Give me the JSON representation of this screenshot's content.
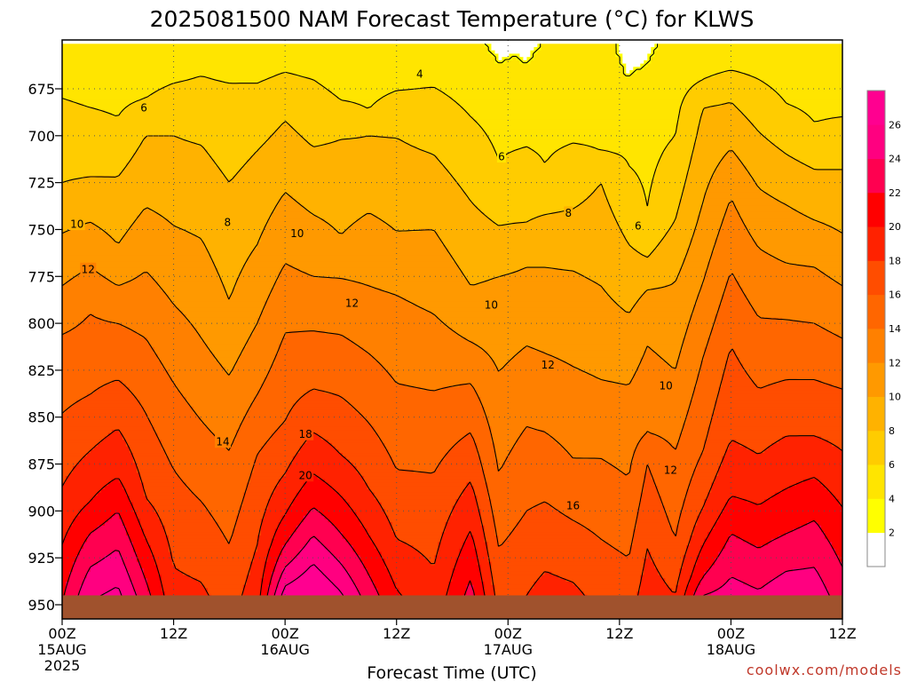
{
  "title": "2025081500 NAM Forecast Temperature (°C) for KLWS",
  "credit": "coolwx.com/models",
  "chart_data": {
    "type": "heatmap",
    "title": "2025081500 NAM Forecast Temperature (°C) for KLWS",
    "xlabel": "Forecast Time (UTC)",
    "ylabel": "",
    "x_range_hours": [
      0,
      84
    ],
    "y_range_mb": [
      950,
      651
    ],
    "y_ticks": [
      675,
      700,
      725,
      750,
      775,
      800,
      825,
      850,
      875,
      900,
      925,
      950
    ],
    "x_ticks": [
      {
        "hour": 0,
        "line1": "00Z",
        "line2": "15AUG",
        "line3": "2025"
      },
      {
        "hour": 12,
        "line1": "12Z",
        "line2": "",
        "line3": ""
      },
      {
        "hour": 24,
        "line1": "00Z",
        "line2": "16AUG",
        "line3": ""
      },
      {
        "hour": 36,
        "line1": "12Z",
        "line2": "",
        "line3": ""
      },
      {
        "hour": 48,
        "line1": "00Z",
        "line2": "17AUG",
        "line3": ""
      },
      {
        "hour": 60,
        "line1": "12Z",
        "line2": "",
        "line3": ""
      },
      {
        "hour": 72,
        "line1": "00Z",
        "line2": "18AUG",
        "line3": ""
      },
      {
        "hour": 84,
        "line1": "12Z",
        "line2": "",
        "line3": ""
      }
    ],
    "grid": true,
    "ground_below_mb": 945,
    "colorbar": {
      "levels": [
        2,
        4,
        6,
        8,
        10,
        12,
        14,
        16,
        18,
        20,
        22,
        24,
        26
      ],
      "colors": [
        "#ffffff",
        "#ffff00",
        "#ffe500",
        "#ffcc00",
        "#ffb200",
        "#ff9900",
        "#ff8000",
        "#ff6600",
        "#ff4d00",
        "#ff2200",
        "#ff0000",
        "#ff0050",
        "#ff0080",
        "#ff0090"
      ]
    },
    "contour_levels": [
      4,
      6,
      8,
      10,
      12,
      14,
      16,
      18,
      20,
      22,
      24,
      26
    ],
    "contour_labels": [
      {
        "text": "4",
        "hour": 38.5,
        "mb": 667
      },
      {
        "text": "6",
        "hour": 8.8,
        "mb": 685
      },
      {
        "text": "6",
        "hour": 47.3,
        "mb": 711
      },
      {
        "text": "6",
        "hour": 62.0,
        "mb": 748
      },
      {
        "text": "8",
        "hour": 17.8,
        "mb": 746
      },
      {
        "text": "8",
        "hour": 54.5,
        "mb": 741
      },
      {
        "text": "10",
        "hour": 1.6,
        "mb": 747
      },
      {
        "text": "10",
        "hour": 25.3,
        "mb": 752
      },
      {
        "text": "10",
        "hour": 46.2,
        "mb": 790
      },
      {
        "text": "10",
        "hour": 65.0,
        "mb": 833
      },
      {
        "text": "12",
        "hour": 2.8,
        "mb": 771
      },
      {
        "text": "12",
        "hour": 31.2,
        "mb": 789
      },
      {
        "text": "12",
        "hour": 52.3,
        "mb": 822
      },
      {
        "text": "12",
        "hour": 65.5,
        "mb": 878
      },
      {
        "text": "14",
        "hour": 17.3,
        "mb": 863
      },
      {
        "text": "16",
        "hour": 55.0,
        "mb": 897
      },
      {
        "text": "18",
        "hour": 26.2,
        "mb": 859
      },
      {
        "text": "20",
        "hour": 26.2,
        "mb": 881
      }
    ],
    "temperature_profiles": [
      {
        "hour": 0,
        "mb": [
          651,
          680,
          725,
          752,
          780,
          806,
          848,
          887,
          918
        ],
        "temps": [
          4.5,
          6,
          8,
          10,
          12,
          14,
          16,
          18,
          20
        ]
      },
      {
        "hour": 3,
        "mb": [
          651,
          685,
          722,
          746,
          770,
          795,
          838,
          868,
          895,
          912,
          930
        ],
        "temps": [
          4.5,
          6,
          8,
          10,
          12,
          14,
          16,
          18,
          20,
          22,
          24
        ]
      },
      {
        "hour": 6,
        "mb": [
          651,
          690,
          722,
          758,
          780,
          800,
          830,
          856,
          882,
          900,
          920
        ],
        "temps": [
          4.5,
          6,
          8,
          10,
          12,
          14,
          16,
          18,
          20,
          22,
          24
        ]
      },
      {
        "hour": 9,
        "mb": [
          651,
          680,
          700,
          738,
          772,
          808,
          848,
          893,
          915
        ],
        "temps": [
          4.5,
          6,
          8,
          10,
          12,
          14,
          16,
          18,
          20
        ]
      },
      {
        "hour": 12,
        "mb": [
          651,
          672,
          700,
          748,
          790,
          832,
          878,
          930
        ],
        "temps": [
          4.5,
          6,
          8,
          10,
          12,
          14,
          16,
          18
        ]
      },
      {
        "hour": 15,
        "mb": [
          651,
          668,
          705,
          755,
          808,
          852,
          895
        ],
        "temps": [
          4.5,
          6,
          8,
          10,
          12,
          14,
          16
        ]
      },
      {
        "hour": 18,
        "mb": [
          651,
          672,
          725,
          788,
          828,
          868,
          918
        ],
        "temps": [
          4.5,
          6,
          8,
          10,
          12,
          14,
          16
        ]
      },
      {
        "hour": 21,
        "mb": [
          651,
          672,
          708,
          758,
          800,
          838,
          870,
          918
        ],
        "temps": [
          4.5,
          6,
          8,
          10,
          12,
          14,
          16,
          18
        ]
      },
      {
        "hour": 24,
        "mb": [
          651,
          666,
          692,
          730,
          768,
          805,
          852,
          880,
          902,
          918,
          930,
          940
        ],
        "temps": [
          4.5,
          6,
          8,
          10,
          12,
          14,
          16,
          18,
          20,
          22,
          24,
          26
        ]
      },
      {
        "hour": 27,
        "mb": [
          651,
          670,
          706,
          742,
          775,
          804,
          835,
          858,
          880,
          898,
          913,
          928
        ],
        "temps": [
          4.5,
          6,
          8,
          10,
          12,
          14,
          16,
          18,
          20,
          22,
          24,
          26
        ]
      },
      {
        "hour": 30,
        "mb": [
          651,
          681,
          702,
          753,
          776,
          806,
          839,
          870,
          892,
          912,
          928,
          943
        ],
        "temps": [
          4.5,
          6,
          8,
          10,
          12,
          14,
          16,
          18,
          20,
          22,
          24,
          26
        ]
      },
      {
        "hour": 33,
        "mb": [
          651,
          686,
          700,
          741,
          780,
          816,
          853,
          888,
          913,
          934
        ],
        "temps": [
          4.5,
          6,
          8,
          10,
          12,
          14,
          16,
          18,
          20,
          22
        ]
      },
      {
        "hour": 36,
        "mb": [
          651,
          676,
          701,
          751,
          785,
          832,
          878,
          915,
          942
        ],
        "temps": [
          4.5,
          6,
          8,
          10,
          12,
          14,
          16,
          18,
          20
        ]
      },
      {
        "hour": 40,
        "mb": [
          651,
          674,
          710,
          750,
          795,
          836,
          880,
          930
        ],
        "temps": [
          4.5,
          6,
          8,
          10,
          12,
          14,
          16,
          18
        ]
      },
      {
        "hour": 44,
        "mb": [
          651,
          690,
          735,
          780,
          810,
          832,
          858
        ],
        "temps": [
          4.5,
          6,
          8,
          10,
          12,
          14,
          16
        ]
      },
      {
        "hour": 47,
        "mb": [
          651,
          713,
          748,
          775,
          826,
          880,
          920
        ],
        "temps": [
          4.5,
          6,
          8,
          10,
          12,
          14,
          16
        ]
      },
      {
        "hour": 50,
        "mb": [
          651,
          706,
          746,
          770,
          812,
          855,
          900
        ],
        "temps": [
          4.5,
          6,
          8,
          10,
          12,
          14,
          16
        ]
      },
      {
        "hour": 52,
        "mb": [
          651,
          715,
          742,
          770,
          816,
          858,
          895
        ],
        "temps": [
          4.5,
          6,
          8,
          10,
          12,
          14,
          16
        ]
      },
      {
        "hour": 55,
        "mb": [
          651,
          704,
          739,
          772,
          823,
          872,
          905
        ],
        "temps": [
          4.5,
          6,
          8,
          10,
          12,
          14,
          16
        ]
      },
      {
        "hour": 58,
        "mb": [
          651,
          708,
          725,
          780,
          830,
          872,
          915
        ],
        "temps": [
          4.5,
          6,
          8,
          10,
          12,
          14,
          16
        ]
      },
      {
        "hour": 61,
        "mb": [
          651,
          716,
          758,
          795,
          833,
          882,
          925
        ],
        "temps": [
          4.5,
          6,
          8,
          10,
          12,
          14,
          16
        ]
      },
      {
        "hour": 63,
        "mb": [
          651,
          738,
          765,
          782,
          812,
          858,
          875,
          920
        ],
        "temps": [
          4.5,
          6,
          8,
          10,
          12,
          14,
          16,
          18
        ]
      },
      {
        "hour": 66,
        "mb": [
          651,
          700,
          745,
          778,
          825,
          868,
          915,
          945
        ],
        "temps": [
          4.5,
          6,
          8,
          10,
          12,
          14,
          16,
          18
        ]
      },
      {
        "hour": 69,
        "mb": [
          651,
          670,
          685,
          735,
          778,
          818,
          868,
          898,
          918,
          935,
          945
        ],
        "temps": [
          4.5,
          6,
          8,
          10,
          12,
          14,
          16,
          18,
          20,
          22,
          24
        ]
      },
      {
        "hour": 72,
        "mb": [
          651,
          665,
          682,
          707,
          733,
          772,
          812,
          862,
          892,
          912,
          935
        ],
        "temps": [
          4.5,
          6,
          8,
          10,
          12,
          14,
          16,
          18,
          20,
          22,
          24
        ]
      },
      {
        "hour": 75,
        "mb": [
          651,
          670,
          698,
          728,
          760,
          797,
          835,
          870,
          897,
          920,
          942
        ],
        "temps": [
          4.5,
          6,
          8,
          10,
          12,
          14,
          16,
          18,
          20,
          22,
          24
        ]
      },
      {
        "hour": 78,
        "mb": [
          651,
          683,
          710,
          737,
          768,
          798,
          830,
          860,
          888,
          912,
          932
        ],
        "temps": [
          4.5,
          6,
          8,
          10,
          12,
          14,
          16,
          18,
          20,
          22,
          24
        ]
      },
      {
        "hour": 81,
        "mb": [
          651,
          693,
          718,
          745,
          770,
          800,
          830,
          860,
          882,
          905,
          930
        ],
        "temps": [
          4.5,
          6,
          8,
          10,
          12,
          14,
          16,
          18,
          20,
          22,
          24
        ]
      },
      {
        "hour": 84,
        "mb": [
          651,
          690,
          718,
          752,
          780,
          808,
          835,
          868,
          898,
          930
        ],
        "temps": [
          4.5,
          6,
          8,
          10,
          12,
          14,
          16,
          18,
          20,
          22
        ]
      }
    ],
    "cold_pockets": [
      {
        "hour": [
          45.6,
          51.5
        ],
        "mb_bottom": [
          651,
          661,
          657,
          661,
          651
        ]
      },
      {
        "hour": [
          59.6,
          64.0
        ],
        "mb_bottom": [
          651,
          668,
          665,
          662,
          651
        ]
      }
    ]
  }
}
